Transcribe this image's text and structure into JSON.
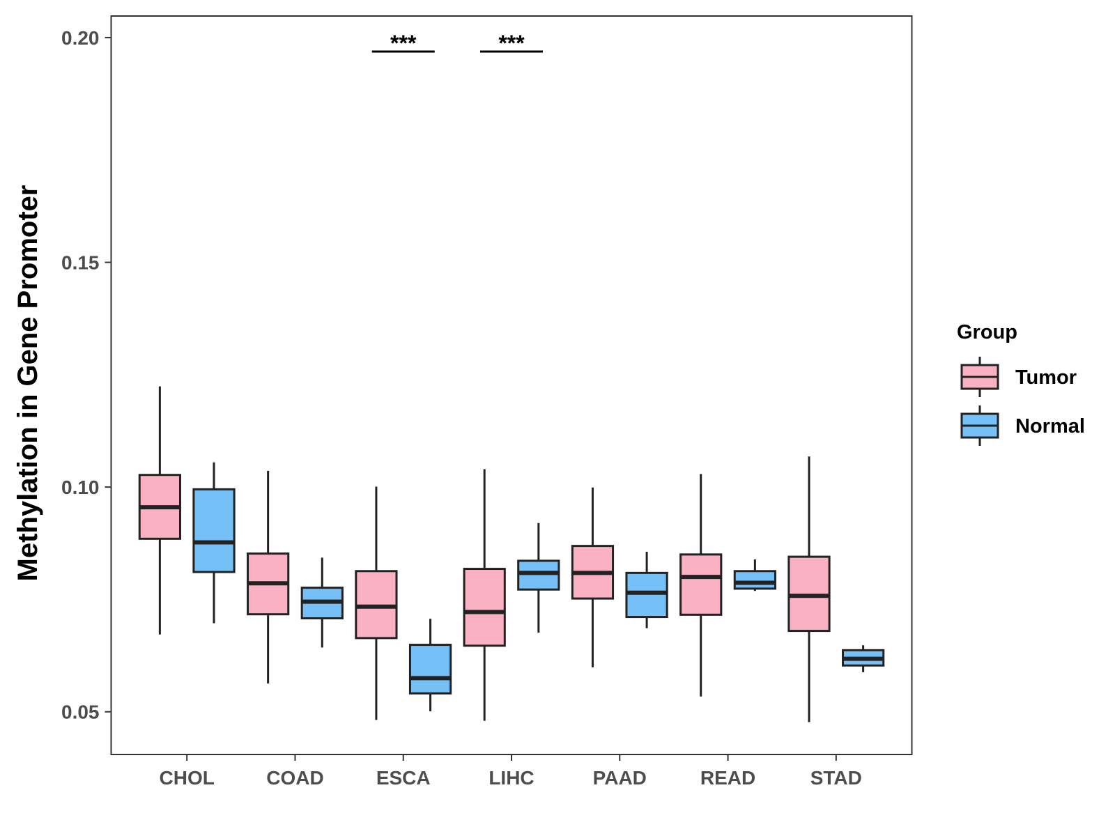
{
  "chart_data": {
    "type": "boxplot",
    "title": "",
    "xlabel": "",
    "ylabel": "Methylation in Gene Promoter",
    "ylim": [
      0.0405,
      0.2048
    ],
    "yticks": [
      0.05,
      0.1,
      0.15,
      0.2
    ],
    "ytick_labels": [
      "0.05",
      "0.10",
      "0.15",
      "0.20"
    ],
    "categories": [
      "CHOL",
      "COAD",
      "ESCA",
      "LIHC",
      "PAAD",
      "READ",
      "STAD"
    ],
    "grid": false,
    "legend": {
      "title": "Group",
      "position": "right",
      "entries": [
        {
          "name": "Tumor",
          "color": "#FBB1C4"
        },
        {
          "name": "Normal",
          "color": "#76C0F8"
        }
      ]
    },
    "series": [
      {
        "name": "Tumor",
        "color": "#FBB1C4",
        "boxes": [
          {
            "category": "CHOL",
            "min": 0.0672,
            "q1": 0.0885,
            "median": 0.0955,
            "q3": 0.1027,
            "max": 0.1224
          },
          {
            "category": "COAD",
            "min": 0.0563,
            "q1": 0.0717,
            "median": 0.0786,
            "q3": 0.0852,
            "max": 0.1036
          },
          {
            "category": "ESCA",
            "min": 0.0482,
            "q1": 0.0664,
            "median": 0.0734,
            "q3": 0.0813,
            "max": 0.1001
          },
          {
            "category": "LIHC",
            "min": 0.048,
            "q1": 0.0647,
            "median": 0.0722,
            "q3": 0.0818,
            "max": 0.104
          },
          {
            "category": "PAAD",
            "min": 0.0599,
            "q1": 0.0752,
            "median": 0.0809,
            "q3": 0.0869,
            "max": 0.0999
          },
          {
            "category": "READ",
            "min": 0.0534,
            "q1": 0.0716,
            "median": 0.08,
            "q3": 0.085,
            "max": 0.1029
          },
          {
            "category": "STAD",
            "min": 0.0477,
            "q1": 0.068,
            "median": 0.0758,
            "q3": 0.0845,
            "max": 0.1068
          }
        ]
      },
      {
        "name": "Normal",
        "color": "#76C0F8",
        "boxes": [
          {
            "category": "CHOL",
            "min": 0.0697,
            "q1": 0.0811,
            "median": 0.0877,
            "q3": 0.0995,
            "max": 0.1055
          },
          {
            "category": "COAD",
            "min": 0.0643,
            "q1": 0.0708,
            "median": 0.0745,
            "q3": 0.0776,
            "max": 0.0843
          },
          {
            "category": "ESCA",
            "min": 0.0501,
            "q1": 0.0541,
            "median": 0.0575,
            "q3": 0.0649,
            "max": 0.0707
          },
          {
            "category": "LIHC",
            "min": 0.0676,
            "q1": 0.0772,
            "median": 0.0809,
            "q3": 0.0836,
            "max": 0.092
          },
          {
            "category": "PAAD",
            "min": 0.0686,
            "q1": 0.0711,
            "median": 0.0765,
            "q3": 0.0809,
            "max": 0.0856
          },
          {
            "category": "READ",
            "min": 0.0769,
            "q1": 0.0774,
            "median": 0.0787,
            "q3": 0.0813,
            "max": 0.0839
          },
          {
            "category": "STAD",
            "min": 0.0588,
            "q1": 0.0603,
            "median": 0.0618,
            "q3": 0.0637,
            "max": 0.0648
          }
        ]
      }
    ],
    "annotations": [
      {
        "category": "ESCA",
        "label": "***",
        "y": 0.1969
      },
      {
        "category": "LIHC",
        "label": "***",
        "y": 0.1969
      }
    ]
  }
}
